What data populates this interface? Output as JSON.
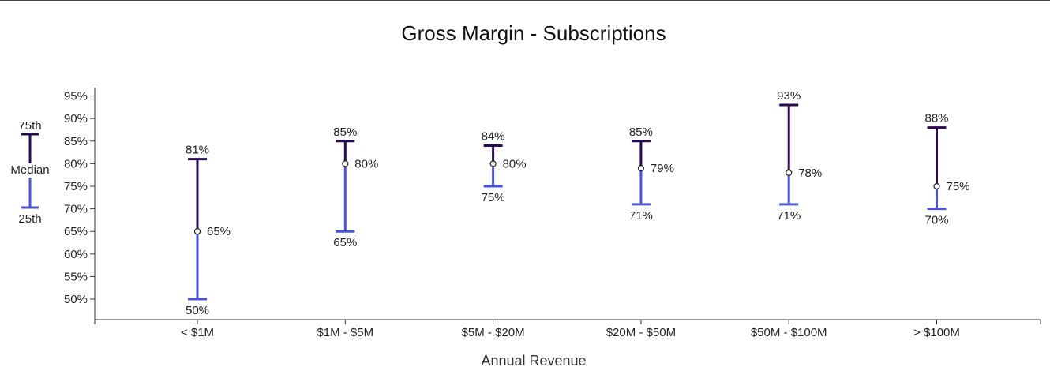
{
  "chart_data": {
    "type": "range",
    "title": "Gross Margin - Subscriptions",
    "xlabel": "Annual Revenue",
    "ylabel": "",
    "ylim": [
      45,
      97
    ],
    "yticks": [
      50,
      55,
      60,
      65,
      70,
      75,
      80,
      85,
      90,
      95
    ],
    "ytick_format": "{v}%",
    "categories": [
      "< $1M",
      "$1M - $5M",
      "$5M - $20M",
      "$20M - $50M",
      "$50M - $100M",
      "> $100M"
    ],
    "series": [
      {
        "name": "25th",
        "values": [
          50,
          65,
          75,
          71,
          71,
          70
        ]
      },
      {
        "name": "Median",
        "values": [
          65,
          80,
          80,
          79,
          78,
          75
        ]
      },
      {
        "name": "75th",
        "values": [
          81,
          85,
          84,
          85,
          93,
          88
        ]
      }
    ],
    "legend": {
      "position": "left",
      "labels": {
        "top": "75th",
        "middle": "Median",
        "bottom": "25th"
      }
    },
    "colors": {
      "upper": "#2a0b52",
      "lower": "#4b54d6",
      "axis": "#333333"
    },
    "grid": false
  }
}
